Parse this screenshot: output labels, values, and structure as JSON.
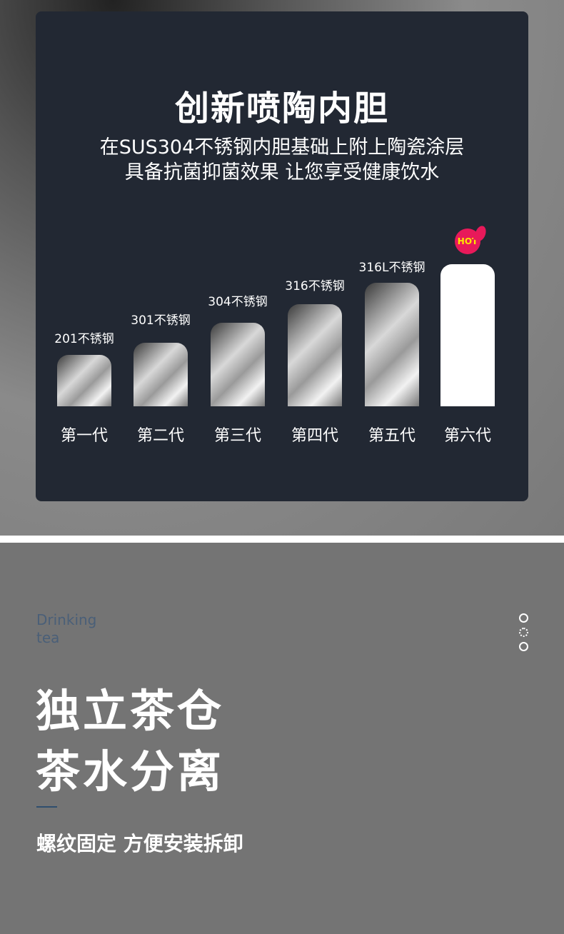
{
  "panel": {
    "title": "创新喷陶内胆",
    "line1": "在SUS304不锈钢内胆基础上附上陶瓷涂层",
    "line2": "具备抗菌抑菌效果 让您享受健康饮水"
  },
  "generations": [
    {
      "label": "第一代",
      "material": "201不锈钢"
    },
    {
      "label": "第二代",
      "material": "301不锈钢"
    },
    {
      "label": "第三代",
      "material": "304不锈钢"
    },
    {
      "label": "第四代",
      "material": "316不锈钢"
    },
    {
      "label": "第五代",
      "material": "316L不锈钢"
    },
    {
      "label": "第六代",
      "material": "",
      "badge": "HOT"
    }
  ],
  "section2": {
    "en_line1": "Drinking",
    "en_line2": "tea",
    "heading1": "独立茶仓",
    "heading2": "茶水分离",
    "subtitle": "螺纹固定 方便安装拆卸"
  },
  "colors": {
    "panel": "#222833",
    "hot": "#e8195a",
    "accent_line": "#2f4e6e"
  }
}
